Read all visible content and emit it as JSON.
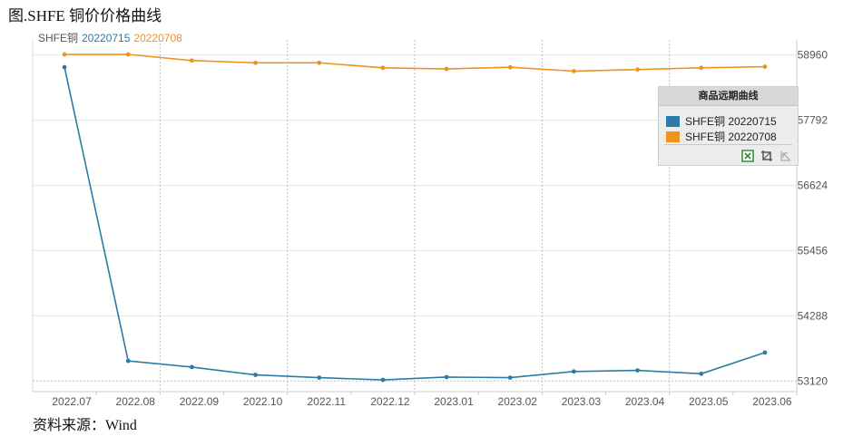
{
  "figure_title": "图.SHFE 铜价价格曲线",
  "source": "资料来源：Wind",
  "legend_prefix": "SHFE铜",
  "panel": {
    "title": "商品远期曲线",
    "tools": [
      "excel-export-icon",
      "crop-icon",
      "collapse-icon"
    ]
  },
  "colors": {
    "series1": "#2b7ba6",
    "series2": "#f0921e",
    "grid": "#dddddd",
    "axis_text": "#555555"
  },
  "chart_data": {
    "type": "line",
    "categories": [
      "2022.07",
      "2022.08",
      "2022.09",
      "2022.10",
      "2022.11",
      "2022.12",
      "2023.01",
      "2023.02",
      "2023.03",
      "2023.04",
      "2023.05",
      "2023.06"
    ],
    "y_ticks": [
      53120,
      54288,
      55456,
      56624,
      57792,
      58960
    ],
    "ylim": [
      52930,
      59230
    ],
    "grid": true,
    "legend_placement": "top-left",
    "series": [
      {
        "name": "20220715",
        "legend_label": "SHFE铜 20220715",
        "color": "#2b7ba6",
        "values": [
          58740,
          53480,
          53370,
          53230,
          53180,
          53140,
          53190,
          53180,
          53290,
          53310,
          53250,
          53630
        ]
      },
      {
        "name": "20220708",
        "legend_label": "SHFE铜 20220708",
        "color": "#f0921e",
        "values": [
          58970,
          58970,
          58860,
          58820,
          58820,
          58730,
          58710,
          58740,
          58670,
          58700,
          58730,
          58750
        ]
      }
    ]
  }
}
